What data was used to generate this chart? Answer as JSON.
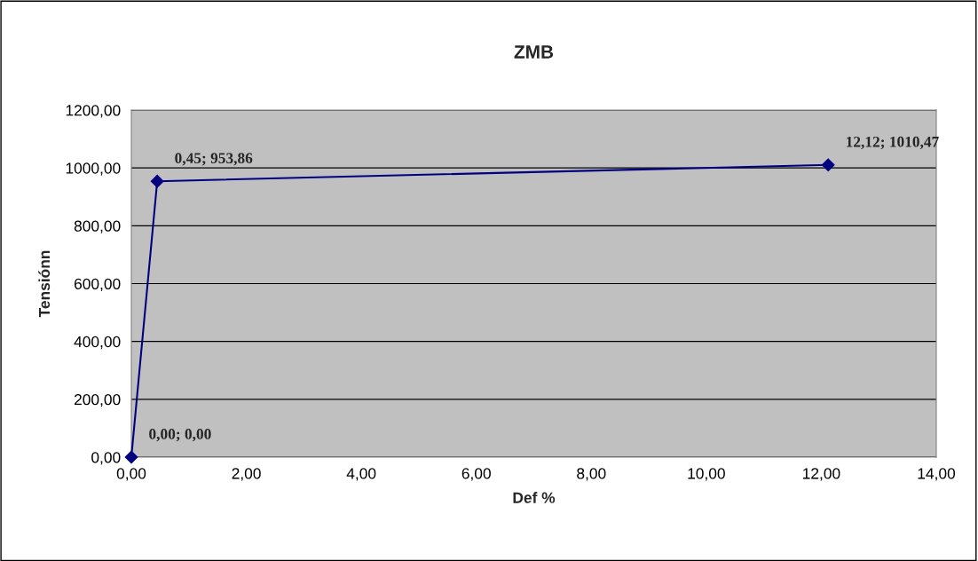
{
  "chart_data": {
    "type": "line",
    "title": "ZMB",
    "xlabel": "Def %",
    "ylabel": "Tensiónn",
    "x": [
      0,
      0.45,
      12.12
    ],
    "series": [
      {
        "color": "#000080",
        "values": [
          0,
          953.86,
          1010.47
        ],
        "value_labels": [
          "0,00; 0,00",
          "0,45; 953,86",
          "12,12; 1010,47"
        ]
      }
    ],
    "xlim": [
      0,
      14
    ],
    "xticks": [
      {
        "value": 0,
        "label": "0,00"
      },
      {
        "value": 2,
        "label": "2,00"
      },
      {
        "value": 4,
        "label": "4,00"
      },
      {
        "value": 6,
        "label": "6,00"
      },
      {
        "value": 8,
        "label": "8,00"
      },
      {
        "value": 10,
        "label": "10,00"
      },
      {
        "value": 12,
        "label": "12,00"
      },
      {
        "value": 14,
        "label": "14,00"
      }
    ],
    "ylim": [
      0,
      1200
    ],
    "yticks": [
      {
        "value": 0,
        "label": "0,00"
      },
      {
        "value": 200,
        "label": "200,00"
      },
      {
        "value": 400,
        "label": "400,00"
      },
      {
        "value": 600,
        "label": "600,00"
      },
      {
        "value": 800,
        "label": "800,00"
      },
      {
        "value": 1000,
        "label": "1000,00"
      },
      {
        "value": 1200,
        "label": "1200,00"
      }
    ],
    "grid": "y",
    "legend": false,
    "marker": "diamond",
    "line_style": "solid"
  }
}
